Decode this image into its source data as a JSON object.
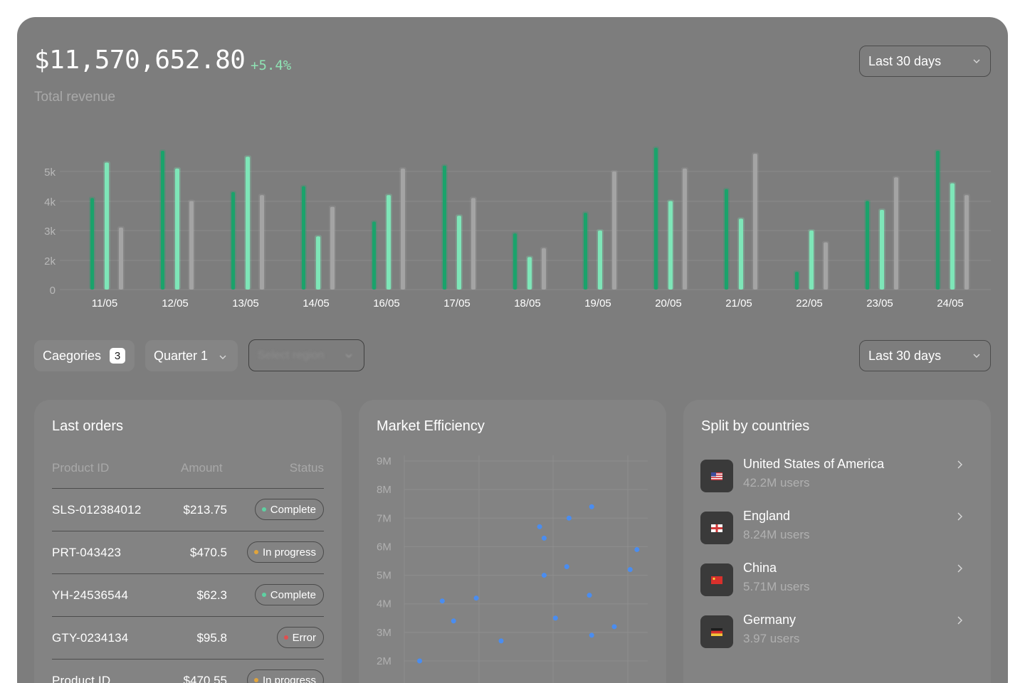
{
  "header": {
    "total_revenue": "$11,570,652.80",
    "change": "+5.4%",
    "label": "Total revenue",
    "period_select": "Last 30 days"
  },
  "revenue_chart": {
    "chart_data": {
      "type": "bar",
      "categories": [
        "11/05",
        "12/05",
        "13/05",
        "14/05",
        "16/05",
        "17/05",
        "18/05",
        "19/05",
        "20/05",
        "21/05",
        "22/05",
        "23/05",
        "24/05"
      ],
      "series": [
        {
          "values": [
            3.1,
            4.7,
            3.3,
            3.5,
            2.3,
            4.2,
            1.9,
            2.6,
            4.8,
            3.4,
            0.6,
            3.0,
            4.7
          ]
        },
        {
          "values": [
            4.3,
            4.1,
            4.5,
            1.8,
            3.2,
            2.5,
            1.1,
            2.0,
            3.0,
            2.4,
            2.0,
            2.7,
            3.6
          ]
        },
        {
          "values": [
            2.1,
            3.0,
            3.2,
            2.8,
            4.1,
            3.1,
            1.4,
            4.0,
            4.1,
            4.6,
            1.6,
            3.8,
            3.2
          ]
        }
      ],
      "yticks": [
        "0",
        "2k",
        "3k",
        "4k",
        "5k"
      ],
      "colors": [
        "#1aa36b",
        "#7ee6b8",
        "#a4a4a4"
      ],
      "grid": true
    }
  },
  "filters": {
    "categories_label": "Caegories",
    "categories_count": "3",
    "quarter": "Quarter 1",
    "region_placeholder": "Select region",
    "period_select": "Last 30 days"
  },
  "orders": {
    "title": "Last orders",
    "columns": [
      "Product ID",
      "Amount",
      "Status"
    ],
    "rows": [
      {
        "id": "SLS-012384012",
        "amount": "$213.75",
        "status": "Complete",
        "dot": "#5ed1a2"
      },
      {
        "id": "PRT-043423",
        "amount": "$470.5",
        "status": "In progress",
        "dot": "#e0a43c"
      },
      {
        "id": "YH-24536544",
        "amount": "$62.3",
        "status": "Complete",
        "dot": "#5ed1a2"
      },
      {
        "id": "GTY-0234134",
        "amount": "$95.8",
        "status": "Error",
        "dot": "#e05050"
      },
      {
        "id": "Product ID",
        "amount": "$470.55",
        "status": "In progress",
        "dot": "#e0a43c"
      }
    ]
  },
  "market": {
    "title": "Market Efficiency",
    "chart_data": {
      "type": "scatter",
      "yticks": [
        "2M",
        "3M",
        "4M",
        "5M",
        "6M",
        "7M",
        "8M",
        "9M"
      ],
      "ylim": [
        2,
        9
      ],
      "xlim": [
        0,
        10
      ],
      "color": "#4a8df0",
      "points": [
        [
          0.3,
          2.0
        ],
        [
          1.3,
          4.1
        ],
        [
          1.8,
          3.4
        ],
        [
          2.8,
          4.2
        ],
        [
          3.9,
          2.7
        ],
        [
          5.6,
          6.7
        ],
        [
          5.8,
          6.3
        ],
        [
          5.8,
          5.0
        ],
        [
          6.3,
          3.5
        ],
        [
          6.8,
          5.3
        ],
        [
          6.9,
          7.0
        ],
        [
          7.8,
          4.3
        ],
        [
          7.9,
          7.4
        ],
        [
          7.9,
          2.9
        ],
        [
          8.9,
          3.2
        ],
        [
          9.6,
          5.2
        ],
        [
          9.9,
          5.9
        ]
      ]
    }
  },
  "countries": {
    "title": "Split by countries",
    "items": [
      {
        "name": "United States of America",
        "users": "42.2M users",
        "flag": "usa-flag-icon"
      },
      {
        "name": "England",
        "users": "8.24M users",
        "flag": "england-flag-icon"
      },
      {
        "name": "China",
        "users": "5.71M users",
        "flag": "china-flag-icon"
      },
      {
        "name": "Germany",
        "users": "3.97 users",
        "flag": "germany-flag-icon"
      }
    ]
  }
}
